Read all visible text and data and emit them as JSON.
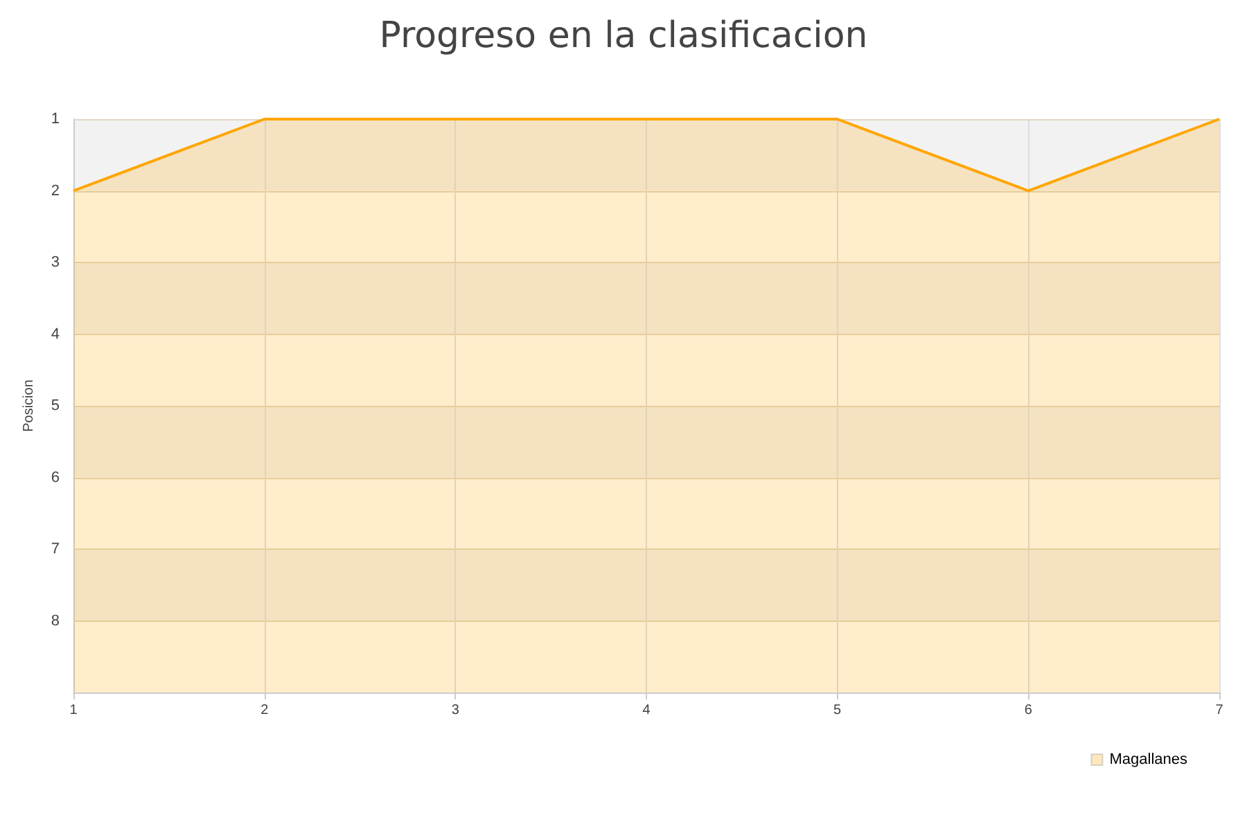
{
  "chart_data": {
    "type": "area",
    "title": "Progreso en la clasificacion",
    "ylabel": "Posicion",
    "x": [
      1,
      2,
      3,
      4,
      5,
      6,
      7
    ],
    "series": [
      {
        "name": "Magallanes",
        "color": "#ffa500",
        "values": [
          2,
          1,
          1,
          1,
          1,
          2,
          1
        ]
      }
    ],
    "xlim": [
      1,
      7
    ],
    "xticks": [
      1,
      2,
      3,
      4,
      5,
      6,
      7
    ],
    "ylim": [
      9,
      1
    ],
    "yticks": [
      1,
      2,
      3,
      4,
      5,
      6,
      7,
      8,
      {
        "value": 9,
        "label": null
      }
    ],
    "grid": true,
    "legend": "bottom right",
    "marker": "none"
  }
}
